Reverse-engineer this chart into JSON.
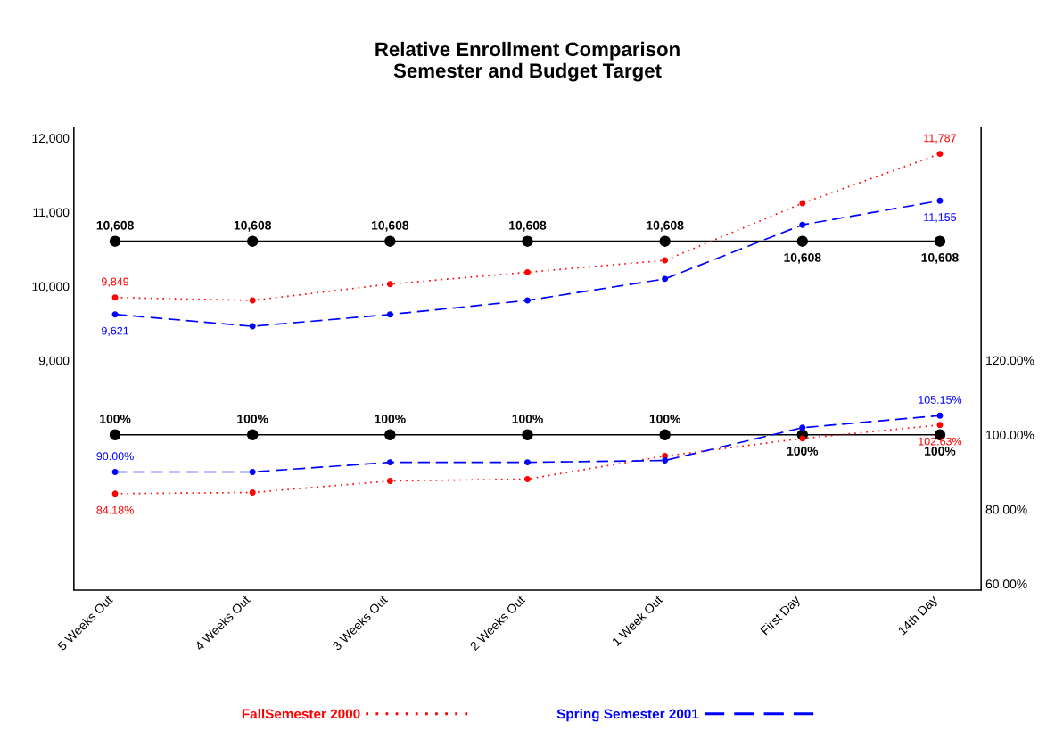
{
  "chart_data": {
    "type": "line",
    "title": "Relative Enrollment Comparison\nSemester and Budget Target",
    "categories": [
      "5 Weeks Out",
      "4 Weeks Out",
      "3 Weeks Out",
      "2 Weeks Out",
      "1 Week Out",
      "First Day",
      "14th Day"
    ],
    "series": [
      {
        "name": "FallSemester 2000",
        "color": "#ff0000",
        "line_style": "dotted",
        "values": [
          9849,
          9810,
          10030,
          10190,
          10350,
          11120,
          11787
        ],
        "value_labels": [
          "9,849",
          null,
          null,
          null,
          null,
          null,
          "11,787"
        ]
      },
      {
        "name": "Spring Semester 2001",
        "color": "#0000ff",
        "line_style": "dashed",
        "values": [
          9621,
          9460,
          9620,
          9810,
          10100,
          10830,
          11155
        ],
        "value_labels": [
          "9,621",
          null,
          null,
          null,
          null,
          null,
          "11,155"
        ]
      },
      {
        "color": "#000000",
        "line_style": "solid",
        "values": [
          10608,
          10608,
          10608,
          10608,
          10608,
          10608,
          10608
        ],
        "value_labels": [
          "10,608",
          "10,608",
          "10,608",
          "10,608",
          "10,608",
          "10,608",
          "10,608"
        ]
      },
      {
        "color": "#ff0000",
        "line_style": "dotted",
        "axis": "y2",
        "values": [
          84.18,
          84.5,
          87.6,
          88.1,
          94.3,
          99.0,
          102.63
        ],
        "value_labels": [
          "84.18%",
          null,
          null,
          null,
          null,
          null,
          "102.63%"
        ]
      },
      {
        "color": "#0000ff",
        "line_style": "dashed",
        "axis": "y2",
        "values": [
          90.0,
          90.0,
          92.6,
          92.6,
          93.1,
          101.9,
          105.15
        ],
        "value_labels": [
          "90.00%",
          null,
          null,
          null,
          null,
          null,
          "105.15%"
        ]
      },
      {
        "color": "#000000",
        "line_style": "solid",
        "axis": "y2",
        "values": [
          100,
          100,
          100,
          100,
          100,
          100,
          100
        ],
        "value_labels": [
          "100%",
          "100%",
          "100%",
          "100%",
          "100%",
          "100%",
          "100%"
        ]
      }
    ],
    "ylim": [
      5900,
      12150
    ],
    "yticks": [
      {
        "value": 9000,
        "label": "9,000"
      },
      {
        "value": 10000,
        "label": "10,000"
      },
      {
        "value": 11000,
        "label": "11,000"
      },
      {
        "value": 12000,
        "label": "12,000"
      }
    ],
    "y2lim": [
      58.3,
      182.6
    ],
    "y2ticks": [
      {
        "value": 60,
        "label": "60.00%"
      },
      {
        "value": 80,
        "label": "80.00%"
      },
      {
        "value": 100,
        "label": "100.00%"
      },
      {
        "value": 120,
        "label": "120.00%"
      }
    ],
    "marker": "circle",
    "grid": false,
    "legend": "bottom"
  }
}
